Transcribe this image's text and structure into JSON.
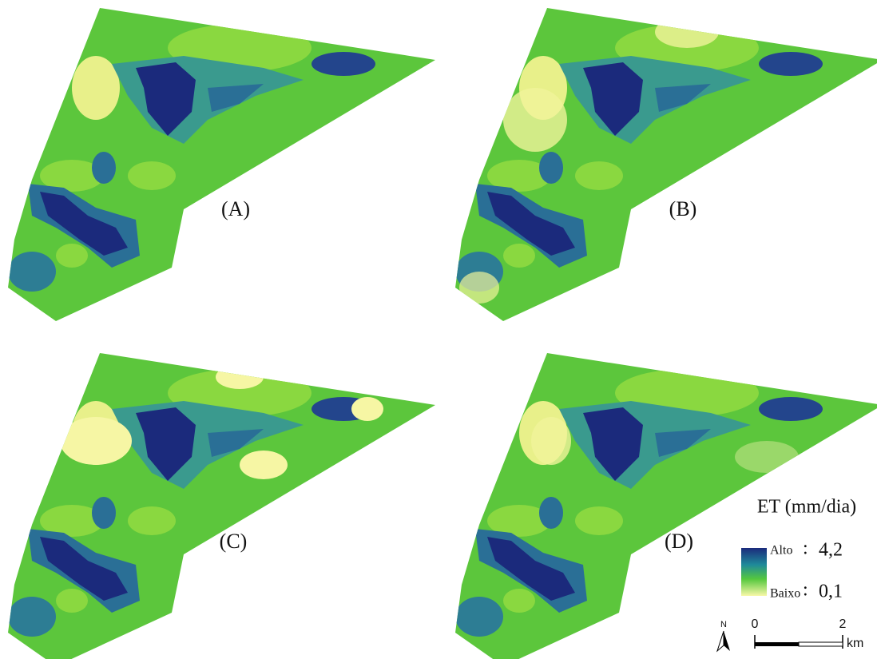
{
  "panels": [
    {
      "label": "(A)"
    },
    {
      "label": "(B)"
    },
    {
      "label": "(C)"
    },
    {
      "label": "(D)"
    }
  ],
  "legend": {
    "title": "ET (mm/dia)",
    "high": {
      "name": "Alto",
      "separator": ":",
      "value": "4,2"
    },
    "low": {
      "name": "Baixo",
      "separator": ":",
      "value": "0,1"
    }
  },
  "north_arrow": {
    "label": "N"
  },
  "scale_bar": {
    "start": "0",
    "end": "2",
    "unit": "km"
  }
}
